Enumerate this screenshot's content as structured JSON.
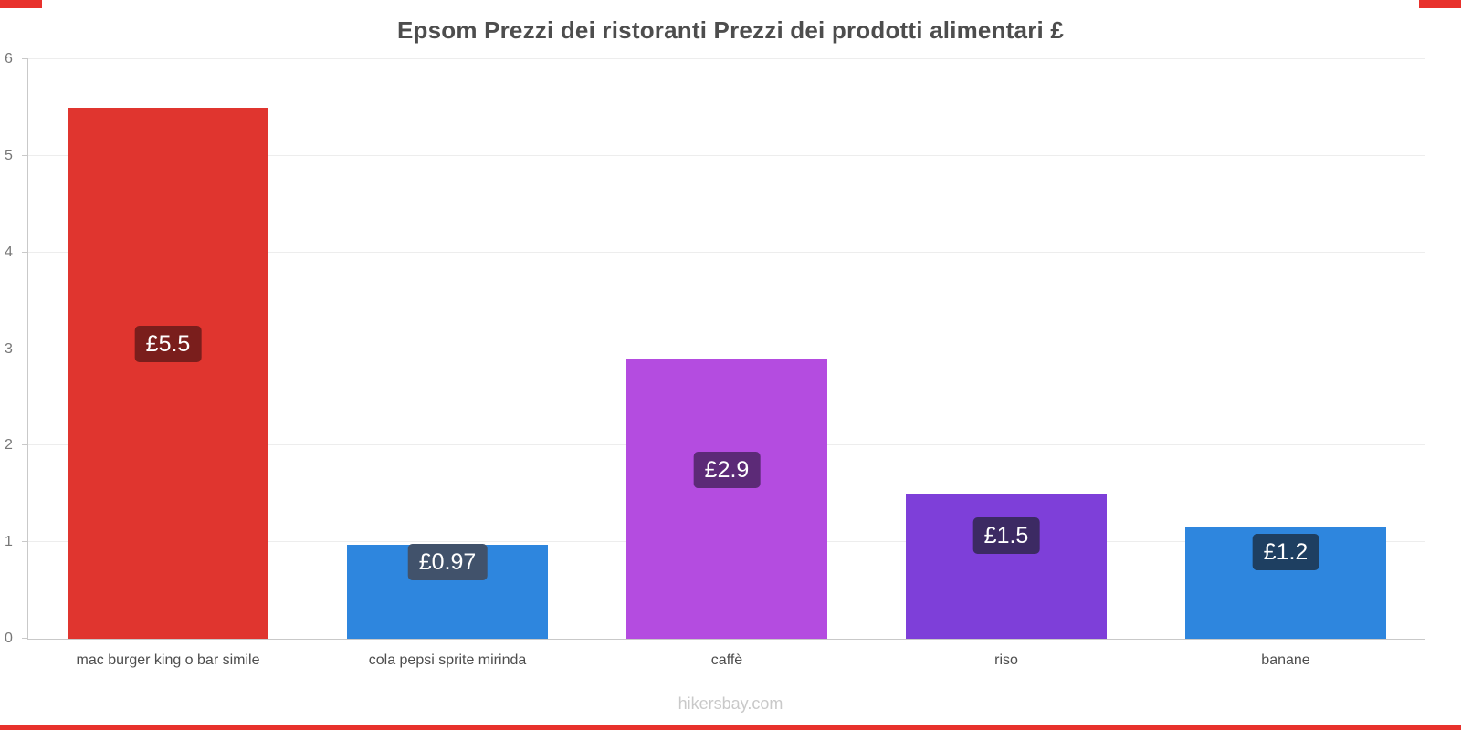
{
  "title": "Epsom Prezzi dei ristoranti Prezzi dei prodotti alimentari £",
  "footer": "hikersbay.com",
  "accent_color": "#e8312c",
  "chart_data": {
    "type": "bar",
    "title": "Epsom Prezzi dei ristoranti Prezzi dei prodotti alimentari £",
    "categories": [
      "mac burger king o bar simile",
      "cola pepsi sprite mirinda",
      "caffè",
      "riso",
      "banane"
    ],
    "values": [
      5.5,
      0.97,
      2.9,
      1.5,
      1.15
    ],
    "value_labels": [
      "£5.5",
      "£0.97",
      "£2.9",
      "£1.5",
      "£1.2"
    ],
    "bar_colors": [
      "#e0352f",
      "#2e86de",
      "#b44ce0",
      "#7e3fd9",
      "#2e86de"
    ],
    "badge_colors": [
      "#7a1e1c",
      "#41526b",
      "#5c2a77",
      "#3c2a63",
      "#1e3f61"
    ],
    "badge_center_values": [
      3.05,
      0.79,
      1.75,
      1.07,
      0.9
    ],
    "xlabel": "",
    "ylabel": "",
    "ylim": [
      0,
      6
    ],
    "yticks": [
      0,
      1,
      2,
      3,
      4,
      5,
      6
    ],
    "grid": true,
    "legend": false
  }
}
